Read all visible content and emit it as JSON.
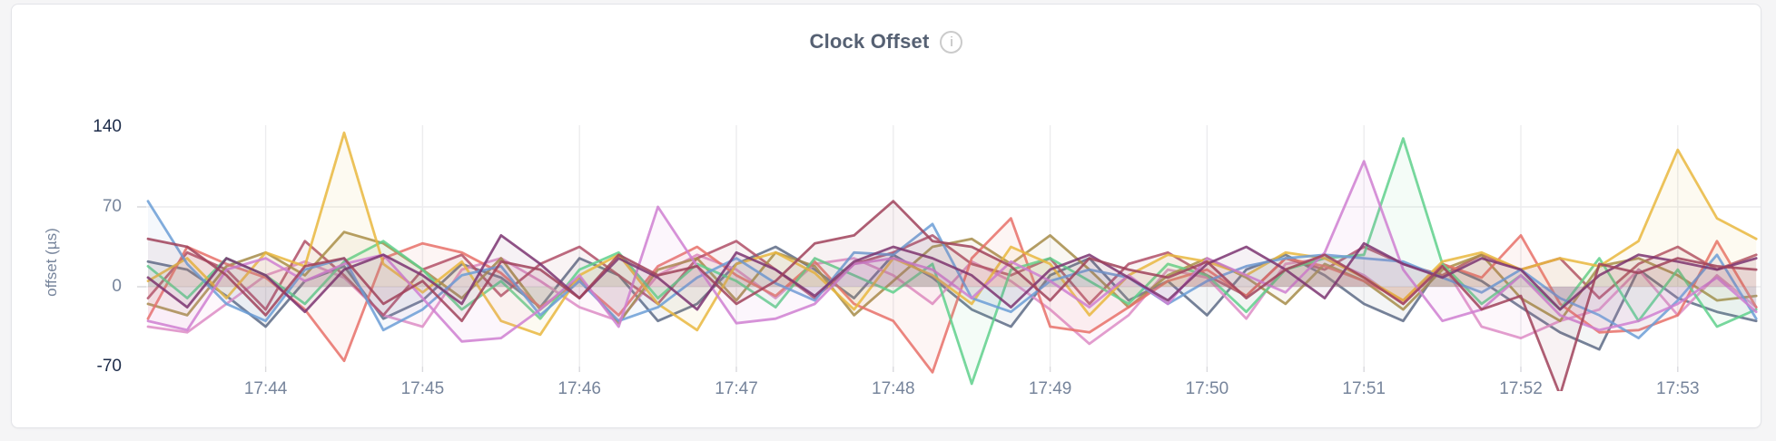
{
  "page": {
    "background": "#f5f5f6",
    "card_background": "#ffffff"
  },
  "header": {
    "title": "Clock Offset",
    "info_icon": "i"
  },
  "chart_data": {
    "type": "line",
    "title": "Clock Offset",
    "xlabel": "",
    "ylabel": "offset (µs)",
    "ylim": [
      -70,
      140
    ],
    "grid": true,
    "legend": "none",
    "x_start": "17:43:15",
    "x_step_seconds": 15,
    "x_axis": {
      "tick_labels": [
        "17:44",
        "17:45",
        "17:46",
        "17:47",
        "17:48",
        "17:49",
        "17:50",
        "17:51",
        "17:52",
        "17:53"
      ]
    },
    "y_axis": {
      "label": "offset (µs)",
      "ticks": [
        {
          "text": "140",
          "value": 140,
          "emphasis": true
        },
        {
          "text": "70",
          "value": 70,
          "emphasis": false
        },
        {
          "text": "0",
          "value": 0,
          "emphasis": false
        },
        {
          "text": "-70",
          "value": -70,
          "emphasis": true
        }
      ],
      "gridline_values": [
        70,
        0
      ]
    },
    "series": [
      {
        "name": "series-1",
        "color": "#5d6b86",
        "values": [
          22,
          15,
          -8,
          -35,
          5,
          18,
          -28,
          -12,
          20,
          8,
          -18,
          25,
          10,
          -30,
          -15,
          20,
          35,
          15,
          -10,
          28,
          8,
          -20,
          -35,
          10,
          25,
          -12,
          5,
          -25,
          15,
          28,
          10,
          -15,
          -30,
          20,
          5,
          -18,
          -40,
          -55,
          15,
          -10,
          -22,
          -30
        ]
      },
      {
        "name": "series-2",
        "color": "#dd8cc5",
        "values": [
          -35,
          -40,
          -15,
          10,
          22,
          8,
          -25,
          -35,
          15,
          25,
          5,
          -18,
          -30,
          10,
          28,
          15,
          -10,
          20,
          25,
          10,
          -15,
          22,
          5,
          -20,
          -50,
          -25,
          15,
          8,
          -28,
          20,
          25,
          10,
          -15,
          20,
          -35,
          -45,
          -30,
          -20,
          15,
          -25,
          10,
          -18
        ]
      },
      {
        "name": "series-3",
        "color": "#b04f67",
        "values": [
          -10,
          30,
          15,
          -20,
          40,
          10,
          -25,
          15,
          28,
          -8,
          20,
          35,
          10,
          -15,
          25,
          40,
          15,
          -10,
          20,
          30,
          45,
          20,
          10,
          25,
          -15,
          20,
          30,
          10,
          -8,
          25,
          15,
          35,
          20,
          10,
          28,
          15,
          25,
          -10,
          20,
          35,
          15,
          28
        ]
      },
      {
        "name": "series-4",
        "color": "#a68c49",
        "values": [
          -15,
          -25,
          18,
          30,
          10,
          48,
          38,
          15,
          -10,
          25,
          -20,
          8,
          -32,
          15,
          25,
          -12,
          30,
          18,
          -25,
          5,
          35,
          42,
          20,
          45,
          15,
          -18,
          10,
          25,
          8,
          -15,
          20,
          5,
          -20,
          15,
          28,
          -10,
          -30,
          18,
          25,
          10,
          -12,
          -8
        ]
      },
      {
        "name": "series-5",
        "color": "#e87068",
        "values": [
          -28,
          35,
          20,
          8,
          -20,
          -65,
          25,
          38,
          30,
          12,
          -18,
          5,
          -25,
          18,
          35,
          10,
          -8,
          22,
          -15,
          -30,
          -75,
          25,
          60,
          -35,
          -40,
          -18,
          5,
          15,
          -8,
          25,
          18,
          5,
          -12,
          20,
          8,
          45,
          -15,
          -40,
          -38,
          -25,
          40,
          -18
        ]
      },
      {
        "name": "series-6",
        "color": "#5fd08c",
        "values": [
          18,
          -10,
          25,
          10,
          -15,
          22,
          40,
          15,
          -20,
          5,
          -28,
          15,
          30,
          -10,
          20,
          5,
          -18,
          25,
          10,
          -5,
          20,
          -85,
          15,
          25,
          5,
          -15,
          20,
          10,
          -22,
          15,
          25,
          28,
          130,
          20,
          -15,
          10,
          -20,
          25,
          -30,
          15,
          -35,
          -20
        ]
      },
      {
        "name": "series-7",
        "color": "#e9b73e",
        "values": [
          5,
          25,
          -10,
          30,
          18,
          135,
          20,
          -5,
          22,
          -30,
          -42,
          10,
          28,
          -15,
          -38,
          20,
          30,
          12,
          -20,
          25,
          10,
          -15,
          35,
          20,
          -25,
          10,
          28,
          22,
          10,
          30,
          25,
          8,
          -12,
          22,
          30,
          15,
          25,
          18,
          40,
          120,
          60,
          42
        ]
      },
      {
        "name": "series-8",
        "color": "#6b9dd6",
        "values": [
          75,
          20,
          -15,
          -30,
          15,
          25,
          -38,
          -20,
          10,
          18,
          -25,
          5,
          -30,
          -18,
          8,
          25,
          3,
          -12,
          30,
          28,
          55,
          -10,
          -22,
          5,
          15,
          8,
          -15,
          5,
          18,
          25,
          28,
          25,
          22,
          8,
          -5,
          15,
          -10,
          -25,
          -45,
          -12,
          28,
          -28
        ]
      },
      {
        "name": "series-9",
        "color": "#cf7fd1",
        "values": [
          -30,
          -38,
          15,
          25,
          5,
          20,
          28,
          -10,
          -48,
          -45,
          -20,
          10,
          -35,
          70,
          18,
          -32,
          -28,
          -15,
          20,
          25,
          15,
          -10,
          22,
          5,
          -18,
          10,
          -15,
          25,
          10,
          -5,
          30,
          110,
          15,
          -30,
          -20,
          10,
          -25,
          -38,
          -30,
          -15,
          8,
          -22
        ]
      },
      {
        "name": "series-10",
        "color": "#7b3471",
        "values": [
          8,
          -18,
          25,
          10,
          -22,
          15,
          28,
          10,
          -15,
          45,
          20,
          -10,
          25,
          8,
          -20,
          30,
          15,
          -8,
          22,
          35,
          25,
          10,
          -18,
          15,
          28,
          8,
          -12,
          20,
          35,
          15,
          -10,
          38,
          20,
          8,
          25,
          15,
          -20,
          10,
          28,
          22,
          15,
          25
        ]
      },
      {
        "name": "series-11",
        "color": "#a0425a",
        "values": [
          42,
          35,
          10,
          -25,
          18,
          25,
          -15,
          5,
          -30,
          22,
          15,
          -10,
          28,
          10,
          18,
          -15,
          5,
          38,
          45,
          75,
          40,
          35,
          18,
          -12,
          25,
          15,
          8,
          22,
          -10,
          15,
          28,
          8,
          -15,
          18,
          -20,
          -8,
          -95,
          20,
          12,
          25,
          18,
          15
        ]
      }
    ]
  }
}
